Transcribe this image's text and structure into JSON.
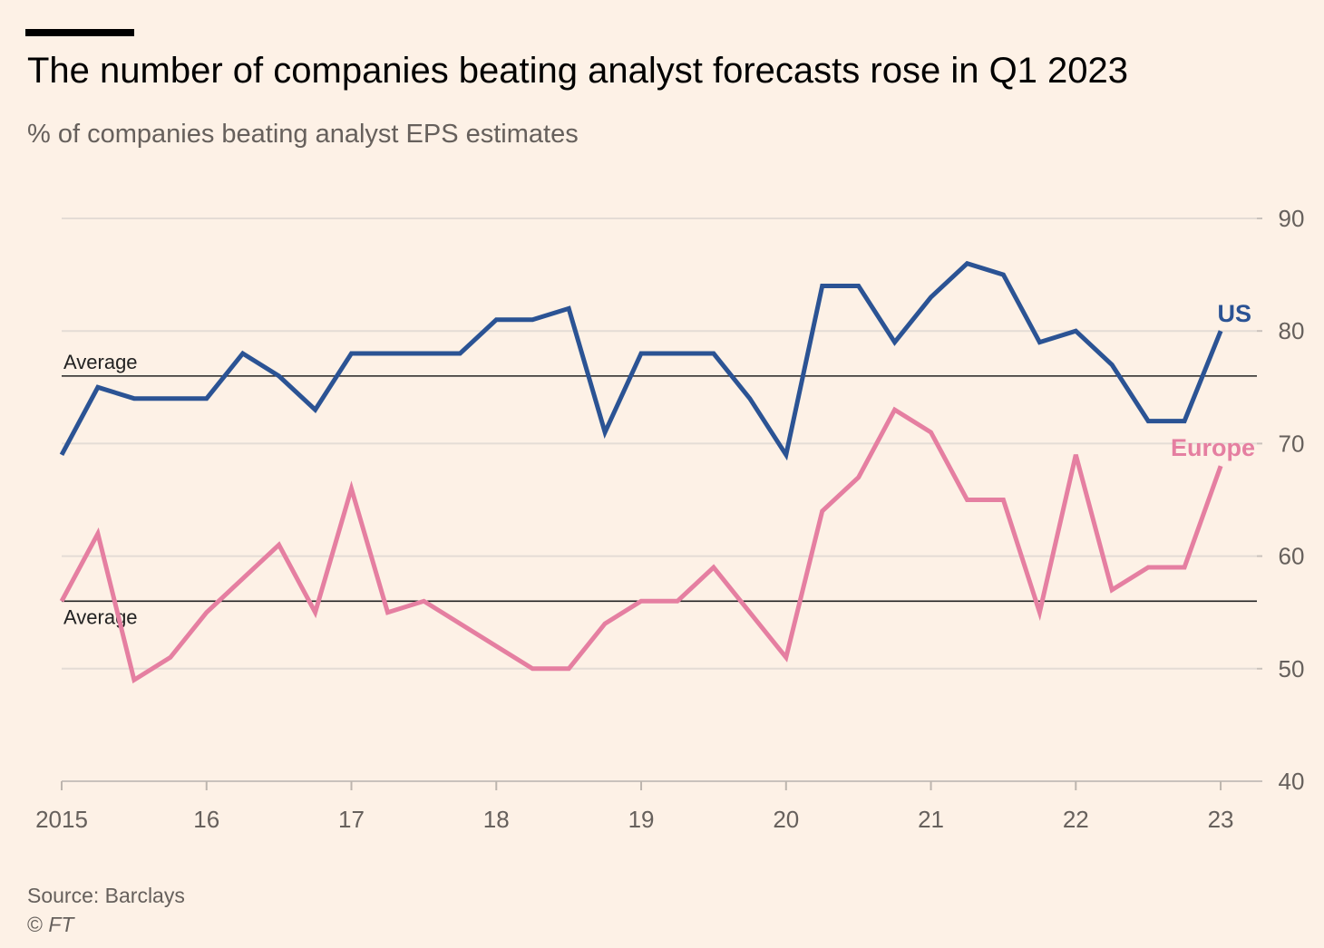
{
  "header": {
    "title": "The number of companies beating analyst forecasts rose in Q1 2023",
    "subtitle": "% of companies beating analyst EPS estimates"
  },
  "footer": {
    "source": "Source: Barclays",
    "copyright_symbol": "©",
    "copyright_name": "FT"
  },
  "chart_data": {
    "type": "line",
    "title": "The number of companies beating analyst forecasts rose in Q1 2023",
    "subtitle": "% of companies beating analyst EPS estimates",
    "xlabel": "",
    "ylabel": "",
    "ylim": [
      40,
      90
    ],
    "yticks": [
      40,
      50,
      60,
      70,
      80,
      90
    ],
    "xlim": [
      2015.0,
      2023.25
    ],
    "xticks": [
      {
        "value": 2015,
        "label": "2015"
      },
      {
        "value": 2016,
        "label": "16"
      },
      {
        "value": 2017,
        "label": "17"
      },
      {
        "value": 2018,
        "label": "18"
      },
      {
        "value": 2019,
        "label": "19"
      },
      {
        "value": 2020,
        "label": "20"
      },
      {
        "value": 2021,
        "label": "21"
      },
      {
        "value": 2022,
        "label": "22"
      },
      {
        "value": 2023,
        "label": "23"
      }
    ],
    "grid": true,
    "legend": "direct labels at right end of lines",
    "x": [
      "2015 Q1",
      "2015 Q2",
      "2015 Q3",
      "2015 Q4",
      "2016 Q1",
      "2016 Q2",
      "2016 Q3",
      "2016 Q4",
      "2017 Q1",
      "2017 Q2",
      "2017 Q3",
      "2017 Q4",
      "2018 Q1",
      "2018 Q2",
      "2018 Q3",
      "2018 Q4",
      "2019 Q1",
      "2019 Q2",
      "2019 Q3",
      "2019 Q4",
      "2020 Q1",
      "2020 Q2",
      "2020 Q3",
      "2020 Q4",
      "2021 Q1",
      "2021 Q2",
      "2021 Q3",
      "2021 Q4",
      "2022 Q1",
      "2022 Q2",
      "2022 Q3",
      "2022 Q4",
      "2023 Q1"
    ],
    "series": [
      {
        "name": "US",
        "color": "#2b5394",
        "values": [
          69,
          75,
          74,
          74,
          74,
          78,
          76,
          73,
          78,
          78,
          78,
          78,
          81,
          81,
          82,
          71,
          78,
          78,
          78,
          74,
          69,
          84,
          84,
          79,
          83,
          86,
          85,
          79,
          80,
          77,
          72,
          72,
          80
        ]
      },
      {
        "name": "Europe",
        "color": "#e57fa1",
        "values": [
          56,
          62,
          49,
          51,
          55,
          58,
          61,
          55,
          66,
          55,
          56,
          54,
          52,
          50,
          50,
          54,
          56,
          56,
          59,
          55,
          51,
          64,
          67,
          73,
          71,
          65,
          65,
          55,
          69,
          57,
          59,
          59,
          68
        ]
      }
    ],
    "reference_lines": [
      {
        "name": "US average",
        "label": "Average",
        "value": 76
      },
      {
        "name": "Europe average",
        "label": "Average",
        "value": 56
      }
    ]
  }
}
